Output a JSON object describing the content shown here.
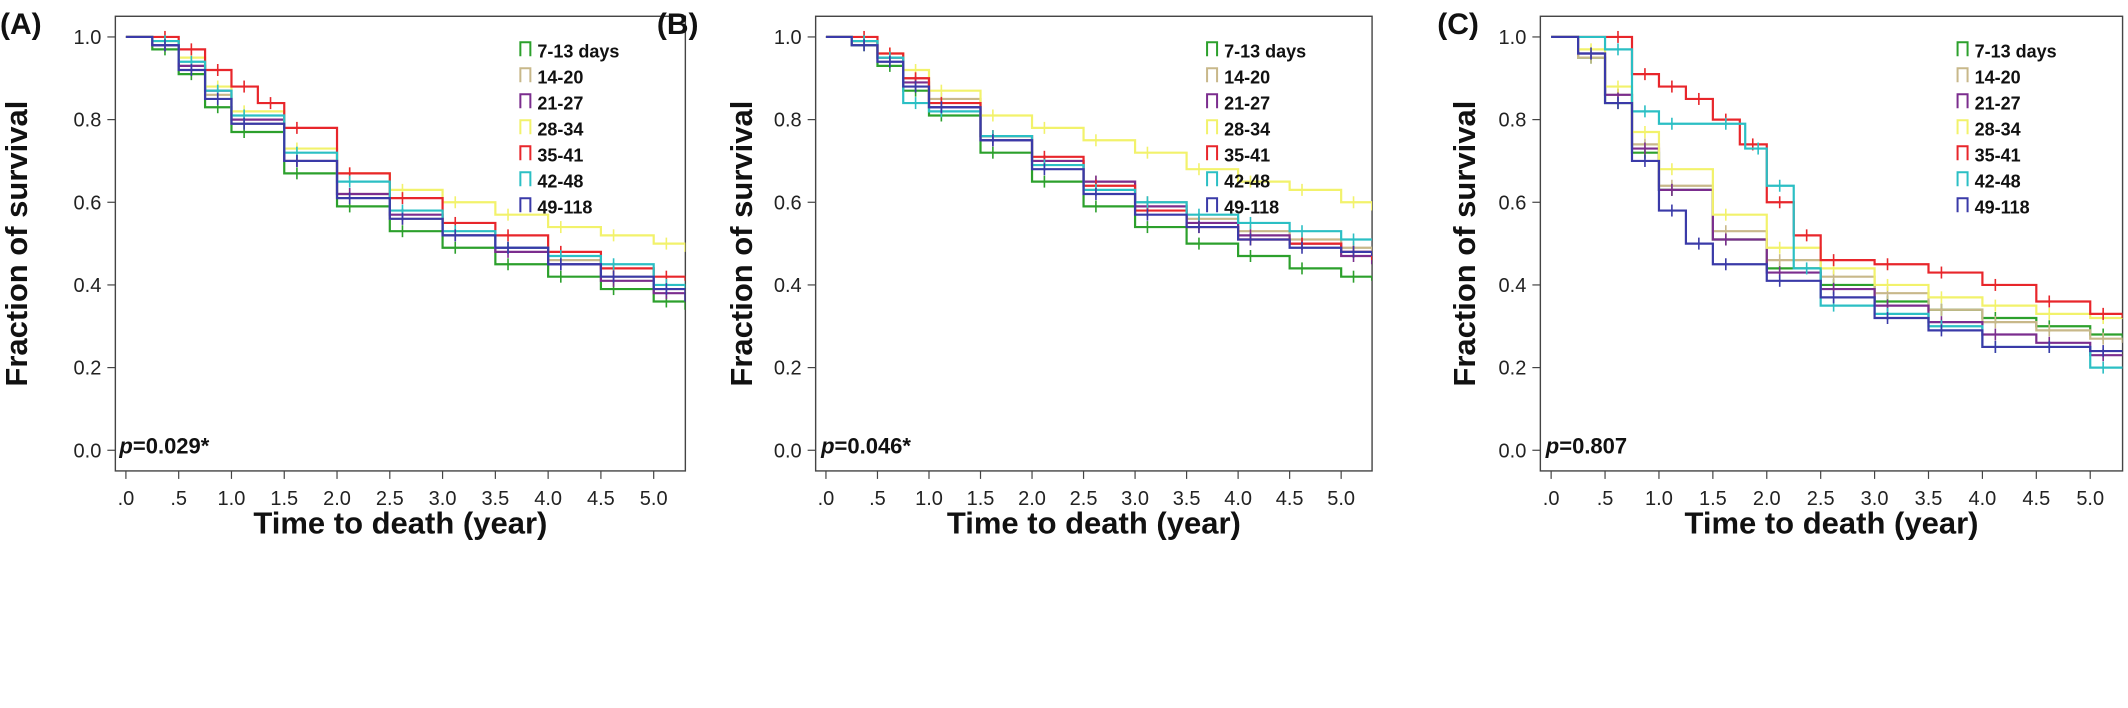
{
  "chart_data": [
    {
      "type": "line",
      "panel_label": "(A)",
      "xlabel": "Time to death (year)",
      "ylabel": "Fraction of survival",
      "xlim": [
        -0.1,
        5.3
      ],
      "ylim": [
        -0.05,
        1.05
      ],
      "x_ticks": [
        0,
        0.5,
        1,
        1.5,
        2,
        2.5,
        3,
        3.5,
        4,
        4.5,
        5
      ],
      "x_tick_labels": [
        ".0",
        ".5",
        "1.0",
        "1.5",
        "2.0",
        "2.5",
        "3.0",
        "3.5",
        "4.0",
        "4.5",
        "5.0"
      ],
      "y_ticks": [
        0,
        0.2,
        0.4,
        0.6,
        0.8,
        1
      ],
      "y_tick_labels": [
        "0.0",
        "0.2",
        "0.4",
        "0.6",
        "0.8",
        "1.0"
      ],
      "legend_position": "top-right",
      "annotation": {
        "p_symbol": "p",
        "value": "=0.029*"
      },
      "series": [
        {
          "name": "7-13 days",
          "color": "#2ca02c",
          "x": [
            0,
            0.25,
            0.5,
            0.75,
            1,
            1.5,
            2,
            2.5,
            3,
            3.5,
            4,
            4.5,
            5,
            5.3
          ],
          "y": [
            1,
            0.97,
            0.91,
            0.83,
            0.77,
            0.67,
            0.59,
            0.53,
            0.49,
            0.45,
            0.42,
            0.39,
            0.36,
            0.34
          ]
        },
        {
          "name": "14-20",
          "color": "#c8b88a",
          "x": [
            0,
            0.25,
            0.5,
            0.75,
            1,
            1.5,
            2,
            2.5,
            3,
            3.5,
            4,
            4.5,
            5,
            5.3
          ],
          "y": [
            1,
            0.98,
            0.93,
            0.86,
            0.79,
            0.7,
            0.62,
            0.56,
            0.52,
            0.49,
            0.46,
            0.42,
            0.39,
            0.37
          ]
        },
        {
          "name": "21-27",
          "color": "#7b2d8e",
          "x": [
            0,
            0.25,
            0.5,
            0.75,
            1,
            1.5,
            2,
            2.5,
            3,
            3.5,
            4,
            4.5,
            5,
            5.3
          ],
          "y": [
            1,
            0.98,
            0.93,
            0.87,
            0.8,
            0.7,
            0.62,
            0.57,
            0.52,
            0.48,
            0.45,
            0.41,
            0.38,
            0.36
          ]
        },
        {
          "name": "28-34",
          "color": "#f2f26b",
          "x": [
            0,
            0.25,
            0.5,
            0.75,
            1,
            1.5,
            2,
            2.5,
            3,
            3.5,
            4,
            4.5,
            5,
            5.3
          ],
          "y": [
            1,
            0.99,
            0.95,
            0.88,
            0.82,
            0.73,
            0.67,
            0.63,
            0.6,
            0.57,
            0.54,
            0.52,
            0.5,
            0.48
          ]
        },
        {
          "name": "35-41",
          "color": "#e8262b",
          "x": [
            0,
            0.25,
            0.5,
            0.75,
            1,
            1.25,
            1.5,
            2,
            2.5,
            3,
            3.5,
            4,
            4.5,
            5,
            5.3
          ],
          "y": [
            1,
            1,
            0.97,
            0.92,
            0.88,
            0.84,
            0.78,
            0.67,
            0.61,
            0.55,
            0.52,
            0.48,
            0.44,
            0.42,
            0.41
          ]
        },
        {
          "name": "42-48",
          "color": "#2bbfc4",
          "x": [
            0,
            0.25,
            0.5,
            0.75,
            1,
            1.5,
            2,
            2.5,
            3,
            3.5,
            4,
            4.5,
            5,
            5.3
          ],
          "y": [
            1,
            0.99,
            0.94,
            0.87,
            0.81,
            0.72,
            0.65,
            0.58,
            0.53,
            0.49,
            0.47,
            0.45,
            0.4,
            0.39
          ]
        },
        {
          "name": "49-118",
          "color": "#3a3aa8",
          "x": [
            0,
            0.25,
            0.5,
            0.75,
            1,
            1.5,
            2,
            2.5,
            3,
            3.5,
            4,
            4.5,
            5,
            5.3
          ],
          "y": [
            1,
            0.98,
            0.92,
            0.85,
            0.79,
            0.7,
            0.61,
            0.56,
            0.52,
            0.49,
            0.45,
            0.42,
            0.39,
            0.36
          ]
        }
      ]
    },
    {
      "type": "line",
      "panel_label": "(B)",
      "xlabel": "Time to death (year)",
      "ylabel": "Fraction of survival",
      "xlim": [
        -0.1,
        5.3
      ],
      "ylim": [
        -0.05,
        1.05
      ],
      "x_ticks": [
        0,
        0.5,
        1,
        1.5,
        2,
        2.5,
        3,
        3.5,
        4,
        4.5,
        5
      ],
      "x_tick_labels": [
        ".0",
        ".5",
        "1.0",
        "1.5",
        "2.0",
        "2.5",
        "3.0",
        "3.5",
        "4.0",
        "4.5",
        "5.0"
      ],
      "y_ticks": [
        0,
        0.2,
        0.4,
        0.6,
        0.8,
        1
      ],
      "y_tick_labels": [
        "0.0",
        "0.2",
        "0.4",
        "0.6",
        "0.8",
        "1.0"
      ],
      "legend_position": "top-right",
      "annotation": {
        "p_symbol": "p",
        "value": "=0.046*"
      },
      "series": [
        {
          "name": "7-13 days",
          "color": "#2ca02c",
          "x": [
            0,
            0.25,
            0.5,
            0.75,
            1,
            1.5,
            2,
            2.5,
            3,
            3.5,
            4,
            4.5,
            5,
            5.3
          ],
          "y": [
            1,
            0.98,
            0.93,
            0.87,
            0.81,
            0.72,
            0.65,
            0.59,
            0.54,
            0.5,
            0.47,
            0.44,
            0.42,
            0.41
          ]
        },
        {
          "name": "14-20",
          "color": "#c8b88a",
          "x": [
            0,
            0.25,
            0.5,
            0.75,
            1,
            1.5,
            2,
            2.5,
            3,
            3.5,
            4,
            4.5,
            5,
            5.3
          ],
          "y": [
            1,
            0.99,
            0.95,
            0.9,
            0.85,
            0.76,
            0.7,
            0.65,
            0.6,
            0.56,
            0.53,
            0.51,
            0.49,
            0.48
          ]
        },
        {
          "name": "21-27",
          "color": "#7b2d8e",
          "x": [
            0,
            0.25,
            0.5,
            0.75,
            1,
            1.5,
            2,
            2.5,
            3,
            3.5,
            4,
            4.5,
            5,
            5.3
          ],
          "y": [
            1,
            0.99,
            0.95,
            0.89,
            0.83,
            0.75,
            0.7,
            0.65,
            0.59,
            0.55,
            0.52,
            0.5,
            0.47,
            0.45
          ]
        },
        {
          "name": "28-34",
          "color": "#f2f26b",
          "x": [
            0,
            0.25,
            0.5,
            0.75,
            1,
            1.5,
            2,
            2.5,
            3,
            3.5,
            4,
            4.5,
            5,
            5.3
          ],
          "y": [
            1,
            0.99,
            0.96,
            0.92,
            0.87,
            0.81,
            0.78,
            0.75,
            0.72,
            0.68,
            0.65,
            0.63,
            0.6,
            0.58
          ]
        },
        {
          "name": "35-41",
          "color": "#e8262b",
          "x": [
            0,
            0.25,
            0.5,
            0.75,
            1,
            1.5,
            2,
            2.5,
            3,
            3.5,
            4,
            4.5,
            5,
            5.3
          ],
          "y": [
            1,
            1,
            0.96,
            0.9,
            0.84,
            0.76,
            0.71,
            0.64,
            0.58,
            0.54,
            0.51,
            0.5,
            0.48,
            0.46
          ]
        },
        {
          "name": "42-48",
          "color": "#2bbfc4",
          "x": [
            0,
            0.25,
            0.5,
            0.75,
            1,
            1.5,
            2,
            2.5,
            3,
            3.5,
            4,
            4.5,
            5,
            5.3
          ],
          "y": [
            1,
            0.99,
            0.95,
            0.84,
            0.82,
            0.76,
            0.69,
            0.63,
            0.6,
            0.57,
            0.55,
            0.53,
            0.51,
            0.51
          ]
        },
        {
          "name": "49-118",
          "color": "#3a3aa8",
          "x": [
            0,
            0.25,
            0.5,
            0.75,
            1,
            1.5,
            2,
            2.5,
            3,
            3.5,
            4,
            4.5,
            5,
            5.3
          ],
          "y": [
            1,
            0.98,
            0.94,
            0.88,
            0.83,
            0.75,
            0.68,
            0.62,
            0.57,
            0.54,
            0.51,
            0.49,
            0.48,
            0.47
          ]
        }
      ]
    },
    {
      "type": "line",
      "panel_label": "(C)",
      "xlabel": "Time to death (year)",
      "ylabel": "Fraction of survival",
      "xlim": [
        -0.1,
        5.3
      ],
      "ylim": [
        -0.05,
        1.05
      ],
      "x_ticks": [
        0,
        0.5,
        1,
        1.5,
        2,
        2.5,
        3,
        3.5,
        4,
        4.5,
        5
      ],
      "x_tick_labels": [
        ".0",
        ".5",
        "1.0",
        "1.5",
        "2.0",
        "2.5",
        "3.0",
        "3.5",
        "4.0",
        "4.5",
        "5.0"
      ],
      "y_ticks": [
        0,
        0.2,
        0.4,
        0.6,
        0.8,
        1
      ],
      "y_tick_labels": [
        "0.0",
        "0.2",
        "0.4",
        "0.6",
        "0.8",
        "1.0"
      ],
      "legend_position": "top-right",
      "annotation": {
        "p_symbol": "p",
        "value": "=0.807"
      },
      "series": [
        {
          "name": "7-13 days",
          "color": "#2ca02c",
          "x": [
            0,
            0.25,
            0.5,
            0.75,
            1,
            1.5,
            2,
            2.5,
            3,
            3.5,
            4,
            4.5,
            5,
            5.3
          ],
          "y": [
            1,
            0.95,
            0.84,
            0.72,
            0.63,
            0.51,
            0.44,
            0.4,
            0.36,
            0.34,
            0.32,
            0.3,
            0.28,
            0.27
          ]
        },
        {
          "name": "14-20",
          "color": "#c8b88a",
          "x": [
            0,
            0.25,
            0.5,
            0.75,
            1,
            1.5,
            2,
            2.5,
            3,
            3.5,
            4,
            4.5,
            5,
            5.3
          ],
          "y": [
            1,
            0.95,
            0.86,
            0.74,
            0.64,
            0.53,
            0.46,
            0.42,
            0.38,
            0.34,
            0.31,
            0.29,
            0.27,
            0.26
          ]
        },
        {
          "name": "21-27",
          "color": "#7b2d8e",
          "x": [
            0,
            0.25,
            0.5,
            0.75,
            1,
            1.5,
            2,
            2.5,
            3,
            3.5,
            4,
            4.5,
            5,
            5.3
          ],
          "y": [
            1,
            0.96,
            0.86,
            0.73,
            0.63,
            0.51,
            0.43,
            0.39,
            0.35,
            0.31,
            0.28,
            0.26,
            0.23,
            0.23
          ]
        },
        {
          "name": "28-34",
          "color": "#f2f26b",
          "x": [
            0,
            0.25,
            0.5,
            0.75,
            1,
            1.5,
            2,
            2.5,
            3,
            3.5,
            4,
            4.5,
            5,
            5.3
          ],
          "y": [
            1,
            0.97,
            0.88,
            0.77,
            0.68,
            0.57,
            0.49,
            0.44,
            0.4,
            0.37,
            0.35,
            0.33,
            0.32,
            0.32
          ]
        },
        {
          "name": "35-41",
          "color": "#e8262b",
          "x": [
            0,
            0.5,
            0.75,
            1,
            1.25,
            1.5,
            1.75,
            2,
            2.25,
            2.5,
            3,
            3.5,
            4,
            4.5,
            5,
            5.3
          ],
          "y": [
            1,
            1,
            0.91,
            0.88,
            0.85,
            0.8,
            0.74,
            0.6,
            0.52,
            0.46,
            0.45,
            0.43,
            0.4,
            0.36,
            0.33,
            0.32
          ]
        },
        {
          "name": "42-48",
          "color": "#2bbfc4",
          "x": [
            0,
            0.5,
            0.75,
            1,
            1.5,
            1.8,
            2,
            2.25,
            2.5,
            3,
            3.5,
            4,
            4.5,
            5,
            5.3
          ],
          "y": [
            1,
            0.97,
            0.82,
            0.79,
            0.79,
            0.73,
            0.64,
            0.44,
            0.35,
            0.33,
            0.3,
            0.25,
            0.25,
            0.2,
            0.2
          ]
        },
        {
          "name": "49-118",
          "color": "#3a3aa8",
          "x": [
            0,
            0.25,
            0.5,
            0.75,
            1,
            1.25,
            1.5,
            2,
            2.5,
            3,
            3.5,
            4,
            4.5,
            5,
            5.3
          ],
          "y": [
            1,
            0.96,
            0.84,
            0.7,
            0.58,
            0.5,
            0.45,
            0.41,
            0.37,
            0.32,
            0.29,
            0.25,
            0.25,
            0.24,
            0.24
          ]
        }
      ]
    }
  ]
}
